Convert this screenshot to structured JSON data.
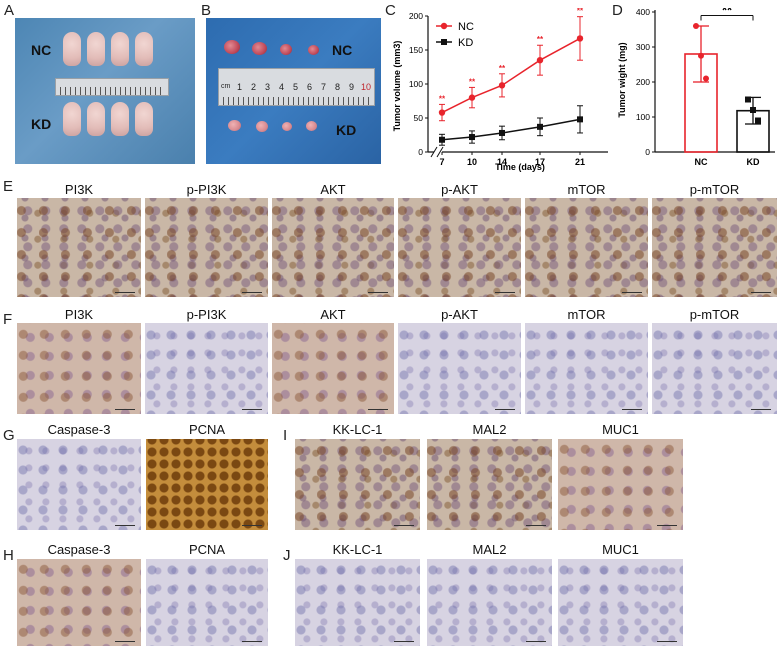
{
  "panel_letters": {
    "a": "A",
    "b": "B",
    "c": "C",
    "d": "D",
    "e": "E",
    "f": "F",
    "g": "G",
    "h": "H",
    "i": "I",
    "j": "J"
  },
  "photo_a": {
    "nc_label": "NC",
    "kd_label": "KD"
  },
  "photo_b": {
    "nc_label": "NC",
    "kd_label": "KD",
    "ruler_numbers": [
      "1",
      "2",
      "3",
      "4",
      "5",
      "6",
      "7",
      "8",
      "9",
      "10"
    ],
    "ruler_unit": "cm"
  },
  "row_e": {
    "labels": [
      "PI3K",
      "p-PI3K",
      "AKT",
      "p-AKT",
      "mTOR",
      "p-mTOR"
    ]
  },
  "row_f": {
    "labels": [
      "PI3K",
      "p-PI3K",
      "AKT",
      "p-AKT",
      "mTOR",
      "p-mTOR"
    ]
  },
  "row_g": {
    "labels": [
      "Caspase-3",
      "PCNA"
    ]
  },
  "row_h": {
    "labels": [
      "Caspase-3",
      "PCNA"
    ]
  },
  "row_i": {
    "labels": [
      "KK-LC-1",
      "MAL2",
      "MUC1"
    ]
  },
  "row_j": {
    "labels": [
      "KK-LC-1",
      "MAL2",
      "MUC1"
    ]
  },
  "colors": {
    "nc": "#e8242c",
    "kd": "#111111"
  },
  "chart_data": [
    {
      "type": "line",
      "panel": "C",
      "ylabel": "Tumor volume (mm3)",
      "xlabel": "Time (days)",
      "x": [
        7,
        10,
        14,
        17,
        21
      ],
      "ylim": [
        0,
        200
      ],
      "yticks": [
        0,
        50,
        100,
        150,
        200
      ],
      "xticks": [
        "7",
        "10",
        "14",
        "17",
        "21"
      ],
      "axis_break": true,
      "legend_position": "top-left",
      "series": [
        {
          "name": "NC",
          "values": [
            58,
            80,
            98,
            135,
            167
          ],
          "errors": [
            12,
            15,
            17,
            22,
            32
          ],
          "marker": "circle"
        },
        {
          "name": "KD",
          "values": [
            18,
            22,
            28,
            37,
            48
          ],
          "errors": [
            8,
            9,
            10,
            13,
            20
          ],
          "marker": "square"
        }
      ],
      "annotations": [
        "**",
        "**",
        "**",
        "**",
        "**"
      ]
    },
    {
      "type": "bar",
      "panel": "D",
      "ylabel": "Tumor wight (mg)",
      "categories": [
        "NC",
        "KD"
      ],
      "values": [
        280,
        118
      ],
      "errors": [
        80,
        38
      ],
      "points": [
        [
          360,
          275,
          210
        ],
        [
          150,
          120,
          90
        ]
      ],
      "ylim": [
        0,
        400
      ],
      "yticks": [
        0,
        100,
        200,
        300,
        400
      ],
      "significance": "**"
    }
  ]
}
